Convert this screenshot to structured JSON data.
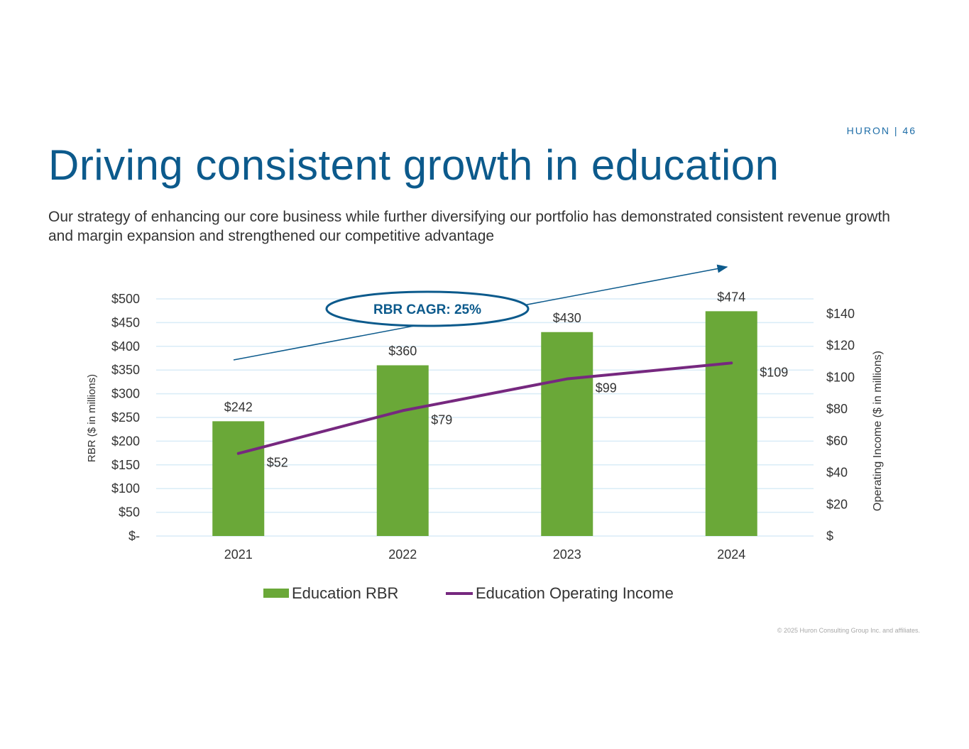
{
  "header": {
    "brand": "HURON | 46",
    "title": "Driving consistent growth in education",
    "subtitle": "Our strategy of enhancing our core business while further diversifying our portfolio has demonstrated consistent revenue growth and margin expansion and strengthened our competitive advantage"
  },
  "footer": {
    "copyright": "© 2025 Huron Consulting Group Inc. and affiliates."
  },
  "colors": {
    "bar": "#6aa838",
    "line": "#76287f",
    "gridline": "#d9ecf7",
    "title": "#0c5a8c",
    "annotation": "#0c5a8c"
  },
  "chart_data": {
    "type": "bar",
    "categories": [
      "2021",
      "2022",
      "2023",
      "2024"
    ],
    "series": [
      {
        "name": "Education RBR",
        "type": "bar",
        "axis": "left",
        "values": [
          242,
          360,
          430,
          474
        ],
        "labels": [
          "$242",
          "$360",
          "$430",
          "$474"
        ]
      },
      {
        "name": "Education Operating Income",
        "type": "line",
        "axis": "right",
        "values": [
          52,
          79,
          99,
          109
        ],
        "labels": [
          "$52",
          "$79",
          "$99",
          "$109"
        ]
      }
    ],
    "ylabel": "RBR ($ in millions)",
    "ylabel_right": "Operating Income ($ in millions)",
    "ylim": [
      0,
      500
    ],
    "ylim_right": [
      0,
      150
    ],
    "yticks": [
      {
        "value": 0,
        "label": "$-"
      },
      {
        "value": 50,
        "label": "$50"
      },
      {
        "value": 100,
        "label": "$100"
      },
      {
        "value": 150,
        "label": "$150"
      },
      {
        "value": 200,
        "label": "$200"
      },
      {
        "value": 250,
        "label": "$250"
      },
      {
        "value": 300,
        "label": "$300"
      },
      {
        "value": 350,
        "label": "$350"
      },
      {
        "value": 400,
        "label": "$400"
      },
      {
        "value": 450,
        "label": "$450"
      },
      {
        "value": 500,
        "label": "$500"
      }
    ],
    "yticks_right": [
      {
        "value": 0,
        "label": "$"
      },
      {
        "value": 20,
        "label": "$20"
      },
      {
        "value": 40,
        "label": "$40"
      },
      {
        "value": 60,
        "label": "$60"
      },
      {
        "value": 80,
        "label": "$80"
      },
      {
        "value": 100,
        "label": "$100"
      },
      {
        "value": 120,
        "label": "$120"
      },
      {
        "value": 140,
        "label": "$140"
      }
    ],
    "annotation": "RBR CAGR: 25%",
    "grid": true,
    "legend_position": "bottom"
  }
}
